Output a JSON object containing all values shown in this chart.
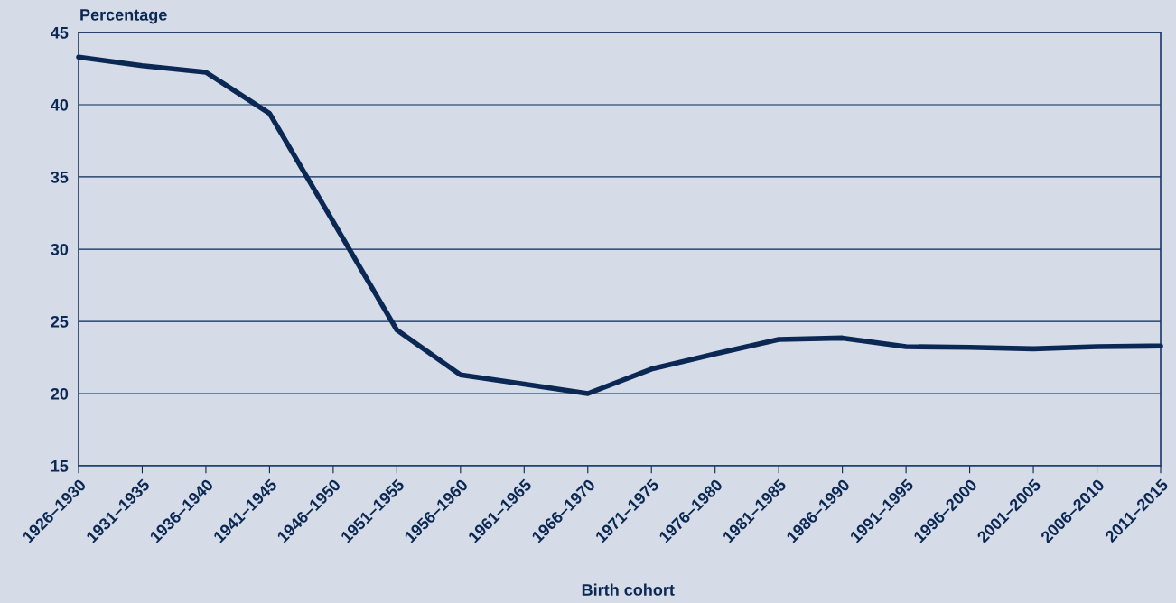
{
  "chart_data": {
    "type": "line",
    "ylabel": "Percentage",
    "xlabel": "Birth cohort",
    "categories": [
      "1926–1930",
      "1931–1935",
      "1936–1940",
      "1941–1945",
      "1946–1950",
      "1951–1955",
      "1956–1960",
      "1961–1965",
      "1966–1970",
      "1971–1975",
      "1976–1980",
      "1981–1985",
      "1986–1990",
      "1991–1995",
      "1996–2000",
      "2001–2005",
      "2006–2010",
      "2011–2015"
    ],
    "series": [
      {
        "color": "#0b2855",
        "values": [
          43.3,
          42.7,
          42.25,
          39.4,
          31.9,
          24.4,
          21.3,
          20.65,
          20.0,
          21.7,
          22.75,
          23.75,
          23.85,
          23.25,
          23.2,
          23.1,
          23.25,
          23.3
        ]
      }
    ],
    "ylim": [
      15,
      45
    ],
    "yticks": [
      15,
      20,
      25,
      30,
      35,
      40,
      45
    ],
    "grid": "y",
    "legend": false,
    "marker": "none",
    "line_style": "solid"
  }
}
